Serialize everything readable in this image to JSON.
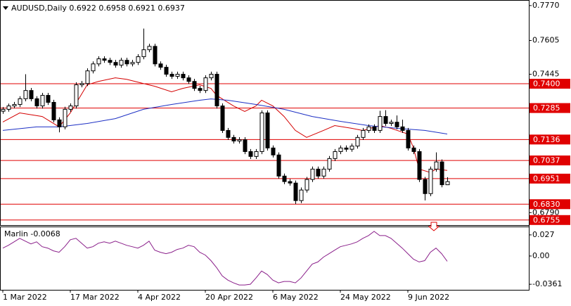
{
  "chart_data": [
    {
      "type": "candlestick",
      "title": "AUDUSD,Daily",
      "categories": [
        "1 Mar 2022",
        null,
        null,
        null,
        null,
        null,
        null,
        null,
        null,
        null,
        null,
        null,
        "17 Mar 2022",
        null,
        null,
        null,
        null,
        null,
        null,
        null,
        null,
        null,
        null,
        null,
        "4 Apr 2022",
        null,
        null,
        null,
        null,
        null,
        null,
        null,
        null,
        null,
        null,
        null,
        "20 Apr 2022",
        null,
        null,
        null,
        null,
        null,
        null,
        null,
        null,
        null,
        null,
        null,
        "6 May 2022",
        null,
        null,
        null,
        null,
        null,
        null,
        null,
        null,
        null,
        null,
        null,
        "24 May 2022",
        null,
        null,
        null,
        null,
        null,
        null,
        null,
        null,
        null,
        null,
        null,
        "9 Jun 2022",
        null,
        null,
        null,
        null,
        null,
        null,
        null
      ],
      "open": [
        0.727,
        0.7279,
        0.7295,
        0.7302,
        0.7329,
        0.7368,
        0.7329,
        0.7295,
        0.7345,
        0.7312,
        0.7229,
        0.7196,
        0.7279,
        0.7295,
        0.7395,
        0.7401,
        0.7461,
        0.7494,
        0.7518,
        0.7511,
        0.7501,
        0.7488,
        0.7511,
        0.7494,
        0.7501,
        0.7528,
        0.7561,
        0.7577,
        0.7494,
        0.7478,
        0.7445,
        0.7435,
        0.7445,
        0.7428,
        0.7411,
        0.7378,
        0.7368,
        0.7428,
        0.7445,
        0.7295,
        0.7179,
        0.7146,
        0.7129,
        0.7135,
        0.7079,
        0.7056,
        0.7079,
        0.7262,
        0.7096,
        0.7063,
        0.6963,
        0.6937,
        0.693,
        0.6847,
        0.6897,
        0.6947,
        0.6996,
        0.6963,
        0.6996,
        0.7046,
        0.7079,
        0.7096,
        0.709,
        0.7105,
        0.7146,
        0.7179,
        0.7196,
        0.7179,
        0.7245,
        0.7212,
        0.7218,
        0.7196,
        0.7179,
        0.7096,
        0.7079,
        0.6947,
        0.688,
        0.6996,
        0.703,
        0.6922
      ],
      "high": [
        0.729,
        0.7306,
        0.7314,
        0.7341,
        0.7445,
        0.738,
        0.7341,
        0.7357,
        0.7357,
        0.7324,
        0.7241,
        0.7291,
        0.7307,
        0.7407,
        0.7413,
        0.7473,
        0.7506,
        0.753,
        0.753,
        0.7523,
        0.7513,
        0.7523,
        0.7523,
        0.7513,
        0.754,
        0.7661,
        0.7589,
        0.7589,
        0.7506,
        0.749,
        0.7457,
        0.7457,
        0.7457,
        0.744,
        0.7423,
        0.739,
        0.744,
        0.7457,
        0.7457,
        0.7307,
        0.7191,
        0.7158,
        0.7147,
        0.7147,
        0.7091,
        0.7091,
        0.7274,
        0.7274,
        0.7108,
        0.7075,
        0.6975,
        0.6949,
        0.6942,
        0.6909,
        0.6959,
        0.7008,
        0.7008,
        0.7008,
        0.7058,
        0.7091,
        0.7108,
        0.7108,
        0.7117,
        0.7158,
        0.7191,
        0.7208,
        0.7208,
        0.7272,
        0.7275,
        0.723,
        0.725,
        0.723,
        0.7191,
        0.7108,
        0.7091,
        0.6959,
        0.7008,
        0.7075,
        0.7042,
        0.6958
      ],
      "low": [
        0.7258,
        0.7268,
        0.7284,
        0.729,
        0.7317,
        0.7317,
        0.7283,
        0.7283,
        0.73,
        0.7217,
        0.717,
        0.7184,
        0.7267,
        0.7283,
        0.7383,
        0.7389,
        0.7449,
        0.7482,
        0.7499,
        0.7489,
        0.7476,
        0.7476,
        0.7482,
        0.7482,
        0.7489,
        0.7516,
        0.7549,
        0.7482,
        0.7466,
        0.7433,
        0.7423,
        0.7423,
        0.7416,
        0.7399,
        0.7366,
        0.7356,
        0.7356,
        0.7416,
        0.7283,
        0.7167,
        0.7134,
        0.7117,
        0.7117,
        0.7067,
        0.7044,
        0.7044,
        0.7067,
        0.7084,
        0.7051,
        0.6951,
        0.6925,
        0.6918,
        0.6831,
        0.6835,
        0.6885,
        0.6935,
        0.6951,
        0.6951,
        0.6984,
        0.7034,
        0.7067,
        0.7078,
        0.7078,
        0.7093,
        0.7134,
        0.7167,
        0.7167,
        0.7167,
        0.72,
        0.72,
        0.7184,
        0.7167,
        0.7084,
        0.7067,
        0.6935,
        0.6848,
        0.6868,
        0.6984,
        0.691,
        0.6921
      ],
      "close": [
        0.7279,
        0.7295,
        0.7302,
        0.7329,
        0.7368,
        0.7329,
        0.7295,
        0.7345,
        0.7312,
        0.7229,
        0.7196,
        0.7279,
        0.7295,
        0.7395,
        0.7401,
        0.7461,
        0.7494,
        0.7518,
        0.7511,
        0.7501,
        0.7488,
        0.7511,
        0.7494,
        0.7501,
        0.7528,
        0.7561,
        0.7577,
        0.7494,
        0.7478,
        0.7445,
        0.7435,
        0.7445,
        0.7428,
        0.7411,
        0.7378,
        0.7368,
        0.7428,
        0.7445,
        0.7295,
        0.7179,
        0.7146,
        0.7129,
        0.7135,
        0.7079,
        0.7056,
        0.7079,
        0.7262,
        0.7096,
        0.7063,
        0.6963,
        0.6937,
        0.693,
        0.6847,
        0.6897,
        0.6947,
        0.6996,
        0.6963,
        0.6996,
        0.7046,
        0.7079,
        0.7096,
        0.709,
        0.7105,
        0.7146,
        0.7179,
        0.7196,
        0.7179,
        0.7245,
        0.7212,
        0.7218,
        0.7196,
        0.7179,
        0.7096,
        0.7079,
        0.6947,
        0.688,
        0.6996,
        0.703,
        0.6922,
        0.6937
      ],
      "series": [
        {
          "color": "#d40000",
          "x": [
            0,
            3,
            7,
            10,
            12,
            15,
            17,
            20,
            22,
            25,
            27,
            30,
            32,
            35,
            37,
            38,
            41,
            43,
            45,
            46,
            48,
            50,
            52,
            54,
            57,
            59,
            62,
            64,
            67,
            69,
            72,
            73,
            74,
            76,
            77,
            79
          ],
          "values": [
            0.7219,
            0.7262,
            0.7245,
            0.7196,
            0.7262,
            0.7395,
            0.7411,
            0.7428,
            0.7421,
            0.7401,
            0.7388,
            0.7362,
            0.7378,
            0.7395,
            0.7378,
            0.7345,
            0.7295,
            0.7269,
            0.7295,
            0.7322,
            0.7295,
            0.7245,
            0.7179,
            0.7146,
            0.7179,
            0.7202,
            0.7189,
            0.7179,
            0.7202,
            0.7189,
            0.7162,
            0.7096,
            0.6996,
            0.698,
            0.6996,
            0.699
          ]
        },
        {
          "color": "#1c2fc4",
          "x": [
            0,
            6,
            10,
            15,
            20,
            25,
            30,
            35,
            37,
            40,
            45,
            50,
            55,
            60,
            65,
            70,
            75,
            79
          ],
          "values": [
            0.7179,
            0.7196,
            0.7196,
            0.7212,
            0.7235,
            0.7279,
            0.7302,
            0.7322,
            0.7328,
            0.7322,
            0.7302,
            0.7279,
            0.7245,
            0.7222,
            0.7202,
            0.7189,
            0.7179,
            0.7162
          ]
        }
      ],
      "levels": [
        {
          "value": 0.74,
          "label": "0.7400"
        },
        0.7285,
        0.7136,
        0.7037,
        0.6951,
        {
          "value": 0.683,
          "label": "0.6830"
        },
        0.6755
      ],
      "level_color": "#e00000",
      "ylim": [
        0.6731,
        0.7793
      ],
      "yticks": [
        {
          "value": 0.777,
          "label": "0.7770"
        },
        0.7605,
        0.7445,
        {
          "value": 0.679,
          "label": "0.6790"
        }
      ]
    },
    {
      "type": "line",
      "title": "Marlin",
      "color": "#8a1f8a",
      "values": [
        0.0101,
        0.0137,
        0.0181,
        0.0226,
        0.019,
        0.0155,
        0.0181,
        0.0119,
        0.0101,
        0.0066,
        0.0048,
        0.0119,
        0.0208,
        0.0226,
        0.0164,
        0.0101,
        0.0119,
        0.0164,
        0.0181,
        0.0164,
        0.019,
        0.0164,
        0.0137,
        0.0119,
        0.0101,
        0.0137,
        0.019,
        0.0075,
        0.0048,
        0.003,
        0.0048,
        0.0084,
        0.0101,
        0.0137,
        0.0119,
        0.0048,
        0.0012,
        -0.0059,
        -0.0148,
        -0.0254,
        -0.0308,
        -0.0343,
        -0.037,
        -0.037,
        -0.0361,
        -0.0281,
        -0.0192,
        -0.0236,
        -0.0308,
        -0.0343,
        -0.0325,
        -0.0325,
        -0.0343,
        -0.0281,
        -0.0192,
        -0.0103,
        -0.0076,
        -0.0014,
        0.003,
        0.0075,
        0.0119,
        0.0137,
        0.0155,
        0.0181,
        0.0226,
        0.0261,
        0.0315,
        0.0261,
        0.0261,
        0.0226,
        0.0164,
        0.0101,
        0.003,
        -0.0041,
        -0.0076,
        -0.0059,
        0.0048,
        0.0101,
        0.003,
        -0.0068
      ],
      "ylim": [
        -0.0432,
        0.0368
      ],
      "yticks": [
        0.027,
        {
          "value": 0,
          "label": "0.00"
        },
        -0.0361
      ]
    }
  ]
}
